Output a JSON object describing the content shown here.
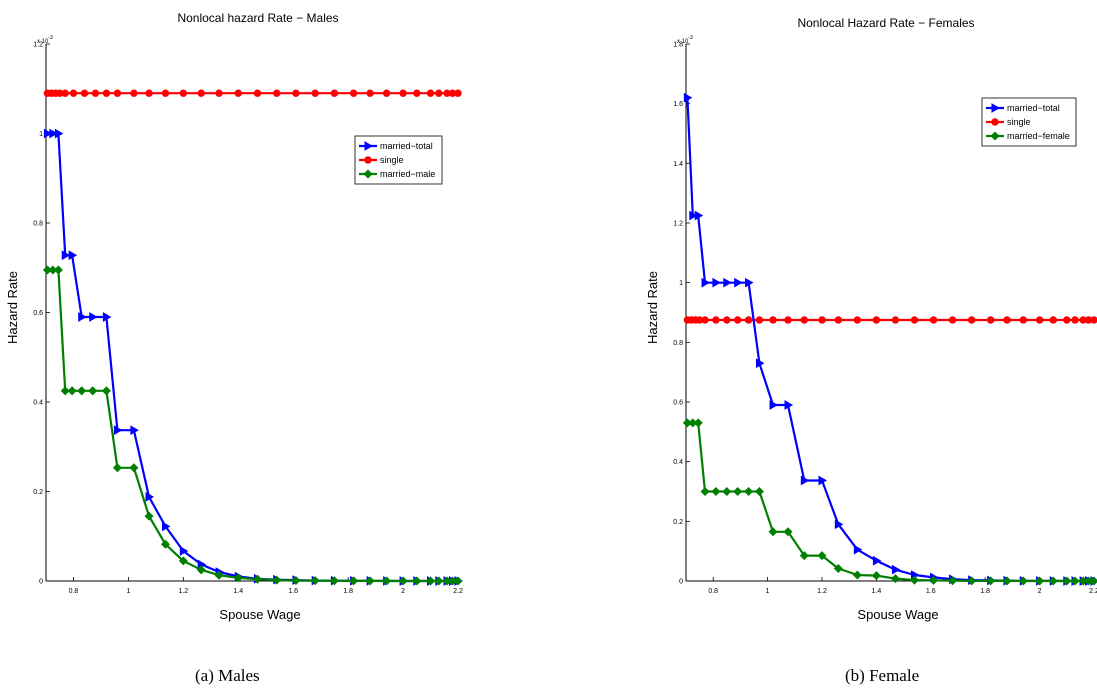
{
  "captions": [
    "(a) Males",
    "(b) Female"
  ],
  "chart_data": [
    {
      "type": "line",
      "title": "Nonlocal hazard Rate − Males",
      "xlabel": "Spouse Wage",
      "ylabel": "Hazard Rate",
      "y_multiplier_label": "x 10",
      "y_multiplier_exponent": "-3",
      "xlim": [
        0.7,
        2.2
      ],
      "ylim": [
        0,
        1.2
      ],
      "xticks": [
        "0.8",
        "1",
        "1.2",
        "1.4",
        "1.6",
        "1.8",
        "2",
        "2.2"
      ],
      "yticks": [
        "0",
        "0.2",
        "0.4",
        "0.6",
        "0.8",
        "1",
        "1.2"
      ],
      "legend_position": "upper right",
      "series": [
        {
          "name": "married−total",
          "color": "#0000ff",
          "marker": "triangle-right",
          "points": [
            [
              0.705,
              1.0
            ],
            [
              0.725,
              1.0
            ],
            [
              0.745,
              1.0
            ],
            [
              0.77,
              0.728
            ],
            [
              0.795,
              0.728
            ],
            [
              0.83,
              0.59
            ],
            [
              0.87,
              0.59
            ],
            [
              0.92,
              0.59
            ],
            [
              0.96,
              0.337
            ],
            [
              1.02,
              0.337
            ],
            [
              1.075,
              0.188
            ],
            [
              1.135,
              0.122
            ],
            [
              1.2,
              0.067
            ],
            [
              1.265,
              0.037
            ],
            [
              1.33,
              0.02
            ],
            [
              1.4,
              0.01
            ],
            [
              1.47,
              0.005
            ],
            [
              1.54,
              0.003
            ],
            [
              1.61,
              0.002
            ],
            [
              1.68,
              0.001
            ],
            [
              1.75,
              0.0007
            ],
            [
              1.82,
              0.0005
            ],
            [
              1.88,
              0.0003
            ],
            [
              1.94,
              0.0002
            ],
            [
              2.0,
              0.0001
            ],
            [
              2.05,
              0.0001
            ],
            [
              2.1,
              0.0001
            ],
            [
              2.13,
              0.0001
            ],
            [
              2.16,
              0.0001
            ],
            [
              2.18,
              0.0001
            ],
            [
              2.2,
              0.0001
            ]
          ]
        },
        {
          "name": "single",
          "color": "#ff0000",
          "marker": "circle",
          "points": [
            [
              0.705,
              1.09
            ],
            [
              0.72,
              1.09
            ],
            [
              0.735,
              1.09
            ],
            [
              0.75,
              1.09
            ],
            [
              0.77,
              1.09
            ],
            [
              0.8,
              1.09
            ],
            [
              0.84,
              1.09
            ],
            [
              0.88,
              1.09
            ],
            [
              0.92,
              1.09
            ],
            [
              0.96,
              1.09
            ],
            [
              1.02,
              1.09
            ],
            [
              1.075,
              1.09
            ],
            [
              1.135,
              1.09
            ],
            [
              1.2,
              1.09
            ],
            [
              1.265,
              1.09
            ],
            [
              1.33,
              1.09
            ],
            [
              1.4,
              1.09
            ],
            [
              1.47,
              1.09
            ],
            [
              1.54,
              1.09
            ],
            [
              1.61,
              1.09
            ],
            [
              1.68,
              1.09
            ],
            [
              1.75,
              1.09
            ],
            [
              1.82,
              1.09
            ],
            [
              1.88,
              1.09
            ],
            [
              1.94,
              1.09
            ],
            [
              2.0,
              1.09
            ],
            [
              2.05,
              1.09
            ],
            [
              2.1,
              1.09
            ],
            [
              2.13,
              1.09
            ],
            [
              2.16,
              1.09
            ],
            [
              2.18,
              1.09
            ],
            [
              2.2,
              1.09
            ]
          ]
        },
        {
          "name": "married−male",
          "color": "#008000",
          "marker": "diamond",
          "points": [
            [
              0.705,
              0.695
            ],
            [
              0.725,
              0.695
            ],
            [
              0.745,
              0.695
            ],
            [
              0.77,
              0.425
            ],
            [
              0.795,
              0.425
            ],
            [
              0.83,
              0.425
            ],
            [
              0.87,
              0.425
            ],
            [
              0.92,
              0.425
            ],
            [
              0.96,
              0.253
            ],
            [
              1.02,
              0.253
            ],
            [
              1.075,
              0.145
            ],
            [
              1.135,
              0.082
            ],
            [
              1.2,
              0.045
            ],
            [
              1.265,
              0.025
            ],
            [
              1.33,
              0.013
            ],
            [
              1.4,
              0.007
            ],
            [
              1.47,
              0.004
            ],
            [
              1.54,
              0.002
            ],
            [
              1.61,
              0.001
            ],
            [
              1.68,
              0.0008
            ],
            [
              1.75,
              0.0005
            ],
            [
              1.82,
              0.0003
            ],
            [
              1.88,
              0.0002
            ],
            [
              1.94,
              0.0001
            ],
            [
              2.0,
              0.0001
            ],
            [
              2.05,
              0.0001
            ],
            [
              2.1,
              0.0001
            ],
            [
              2.13,
              0.0001
            ],
            [
              2.16,
              0.0001
            ],
            [
              2.18,
              0.0001
            ],
            [
              2.2,
              0.0001
            ]
          ]
        }
      ]
    },
    {
      "type": "line",
      "title": "Nonlocal Hazard Rate − Females",
      "xlabel": "Spouse Wage",
      "ylabel": "Hazard Rate",
      "y_multiplier_label": "x 10",
      "y_multiplier_exponent": "-3",
      "xlim": [
        0.7,
        2.2
      ],
      "ylim": [
        0,
        1.8
      ],
      "xticks": [
        "0.8",
        "1",
        "1.2",
        "1.4",
        "1.6",
        "1.8",
        "2",
        "2.2"
      ],
      "yticks": [
        "0",
        "0.2",
        "0.4",
        "0.6",
        "0.8",
        "1",
        "1.2",
        "1.4",
        "1.6",
        "1.8"
      ],
      "legend_position": "upper right",
      "series": [
        {
          "name": "married−total",
          "color": "#0000ff",
          "marker": "triangle-right",
          "points": [
            [
              0.705,
              1.62
            ],
            [
              0.725,
              1.225
            ],
            [
              0.745,
              1.225
            ],
            [
              0.77,
              1.0
            ],
            [
              0.81,
              1.0
            ],
            [
              0.85,
              1.0
            ],
            [
              0.89,
              1.0
            ],
            [
              0.93,
              1.0
            ],
            [
              0.97,
              0.73
            ],
            [
              1.02,
              0.59
            ],
            [
              1.075,
              0.59
            ],
            [
              1.135,
              0.337
            ],
            [
              1.2,
              0.337
            ],
            [
              1.26,
              0.19
            ],
            [
              1.33,
              0.105
            ],
            [
              1.4,
              0.068
            ],
            [
              1.47,
              0.038
            ],
            [
              1.54,
              0.02
            ],
            [
              1.61,
              0.012
            ],
            [
              1.68,
              0.006
            ],
            [
              1.75,
              0.003
            ],
            [
              1.82,
              0.002
            ],
            [
              1.88,
              0.001
            ],
            [
              1.94,
              0.0005
            ],
            [
              2.0,
              0.0003
            ],
            [
              2.05,
              0.0002
            ],
            [
              2.1,
              0.0001
            ],
            [
              2.13,
              0.0001
            ],
            [
              2.16,
              0.0001
            ],
            [
              2.18,
              0.0001
            ],
            [
              2.2,
              0.0001
            ]
          ]
        },
        {
          "name": "single",
          "color": "#ff0000",
          "marker": "circle",
          "points": [
            [
              0.705,
              0.875
            ],
            [
              0.72,
              0.875
            ],
            [
              0.735,
              0.875
            ],
            [
              0.75,
              0.875
            ],
            [
              0.77,
              0.875
            ],
            [
              0.81,
              0.875
            ],
            [
              0.85,
              0.875
            ],
            [
              0.89,
              0.875
            ],
            [
              0.93,
              0.875
            ],
            [
              0.97,
              0.875
            ],
            [
              1.02,
              0.875
            ],
            [
              1.075,
              0.875
            ],
            [
              1.135,
              0.875
            ],
            [
              1.2,
              0.875
            ],
            [
              1.26,
              0.875
            ],
            [
              1.33,
              0.875
            ],
            [
              1.4,
              0.875
            ],
            [
              1.47,
              0.875
            ],
            [
              1.54,
              0.875
            ],
            [
              1.61,
              0.875
            ],
            [
              1.68,
              0.875
            ],
            [
              1.75,
              0.875
            ],
            [
              1.82,
              0.875
            ],
            [
              1.88,
              0.875
            ],
            [
              1.94,
              0.875
            ],
            [
              2.0,
              0.875
            ],
            [
              2.05,
              0.875
            ],
            [
              2.1,
              0.875
            ],
            [
              2.13,
              0.875
            ],
            [
              2.16,
              0.875
            ],
            [
              2.18,
              0.875
            ],
            [
              2.2,
              0.875
            ]
          ]
        },
        {
          "name": "married−female",
          "color": "#008000",
          "marker": "diamond",
          "points": [
            [
              0.705,
              0.53
            ],
            [
              0.725,
              0.53
            ],
            [
              0.745,
              0.53
            ],
            [
              0.77,
              0.3
            ],
            [
              0.81,
              0.3
            ],
            [
              0.85,
              0.3
            ],
            [
              0.89,
              0.3
            ],
            [
              0.93,
              0.3
            ],
            [
              0.97,
              0.3
            ],
            [
              1.02,
              0.165
            ],
            [
              1.075,
              0.165
            ],
            [
              1.135,
              0.085
            ],
            [
              1.2,
              0.085
            ],
            [
              1.26,
              0.042
            ],
            [
              1.33,
              0.02
            ],
            [
              1.4,
              0.018
            ],
            [
              1.47,
              0.008
            ],
            [
              1.54,
              0.003
            ],
            [
              1.61,
              0.002
            ],
            [
              1.68,
              0.001
            ],
            [
              1.75,
              0.0005
            ],
            [
              1.82,
              0.0003
            ],
            [
              1.88,
              0.0002
            ],
            [
              1.94,
              0.0001
            ],
            [
              2.0,
              0.0001
            ],
            [
              2.05,
              0.0001
            ],
            [
              2.1,
              0.0001
            ],
            [
              2.13,
              0.0001
            ],
            [
              2.16,
              0.0001
            ],
            [
              2.18,
              0.0001
            ],
            [
              2.2,
              0.0001
            ]
          ]
        }
      ]
    }
  ]
}
